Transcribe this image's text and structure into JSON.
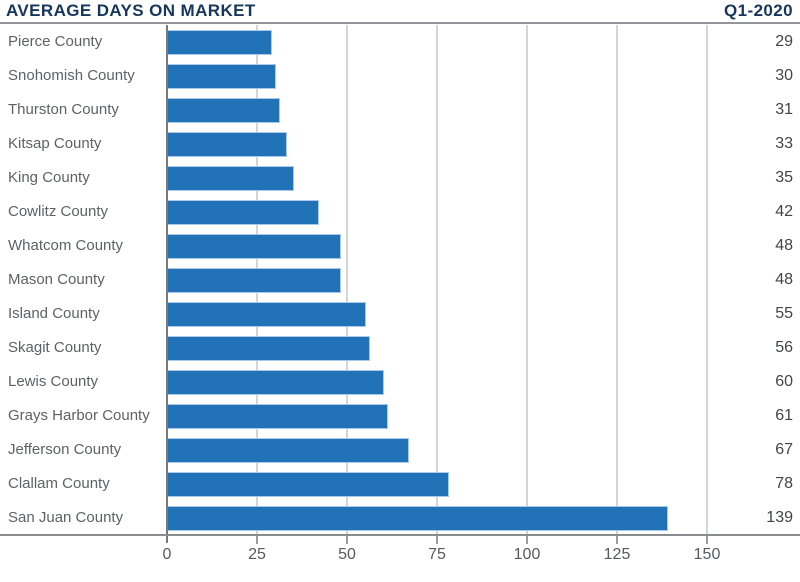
{
  "header": {
    "title": "AVERAGE DAYS ON MARKET",
    "period": "Q1-2020"
  },
  "chart_data": {
    "type": "bar",
    "orientation": "horizontal",
    "title": "AVERAGE DAYS ON MARKET",
    "subtitle": "Q1-2020",
    "categories": [
      "Pierce County",
      "Snohomish County",
      "Thurston County",
      "Kitsap County",
      "King County",
      "Cowlitz County",
      "Whatcom County",
      "Mason County",
      "Island County",
      "Skagit County",
      "Lewis County",
      "Grays Harbor County",
      "Jefferson County",
      "Clallam County",
      "San Juan County"
    ],
    "values": [
      29,
      30,
      31,
      33,
      35,
      42,
      48,
      48,
      55,
      56,
      60,
      61,
      67,
      78,
      139
    ],
    "value_labels": [
      "29",
      "30",
      "31",
      "33",
      "35",
      "42",
      "48",
      "48",
      "55",
      "56",
      "60",
      "61",
      "67",
      "78",
      "139"
    ],
    "xticks": [
      0,
      25,
      50,
      75,
      100,
      125,
      150
    ],
    "xtick_labels": [
      "0",
      "25",
      "50",
      "75",
      "100",
      "125",
      "150"
    ],
    "xlim": [
      0,
      175
    ],
    "grid": true,
    "legend": false,
    "xlabel": "",
    "ylabel": ""
  },
  "colors": {
    "bar": "#2272B8",
    "bar_border": "#A9C9EA",
    "title": "#17365D",
    "category_label": "#5F6164",
    "value_label": "#424446",
    "gridline": "#D4D5D7",
    "axis_line": "#8A8C8F",
    "zero_line": "#77797C",
    "tick_label": "#58595B",
    "background": "#FFFFFF"
  }
}
